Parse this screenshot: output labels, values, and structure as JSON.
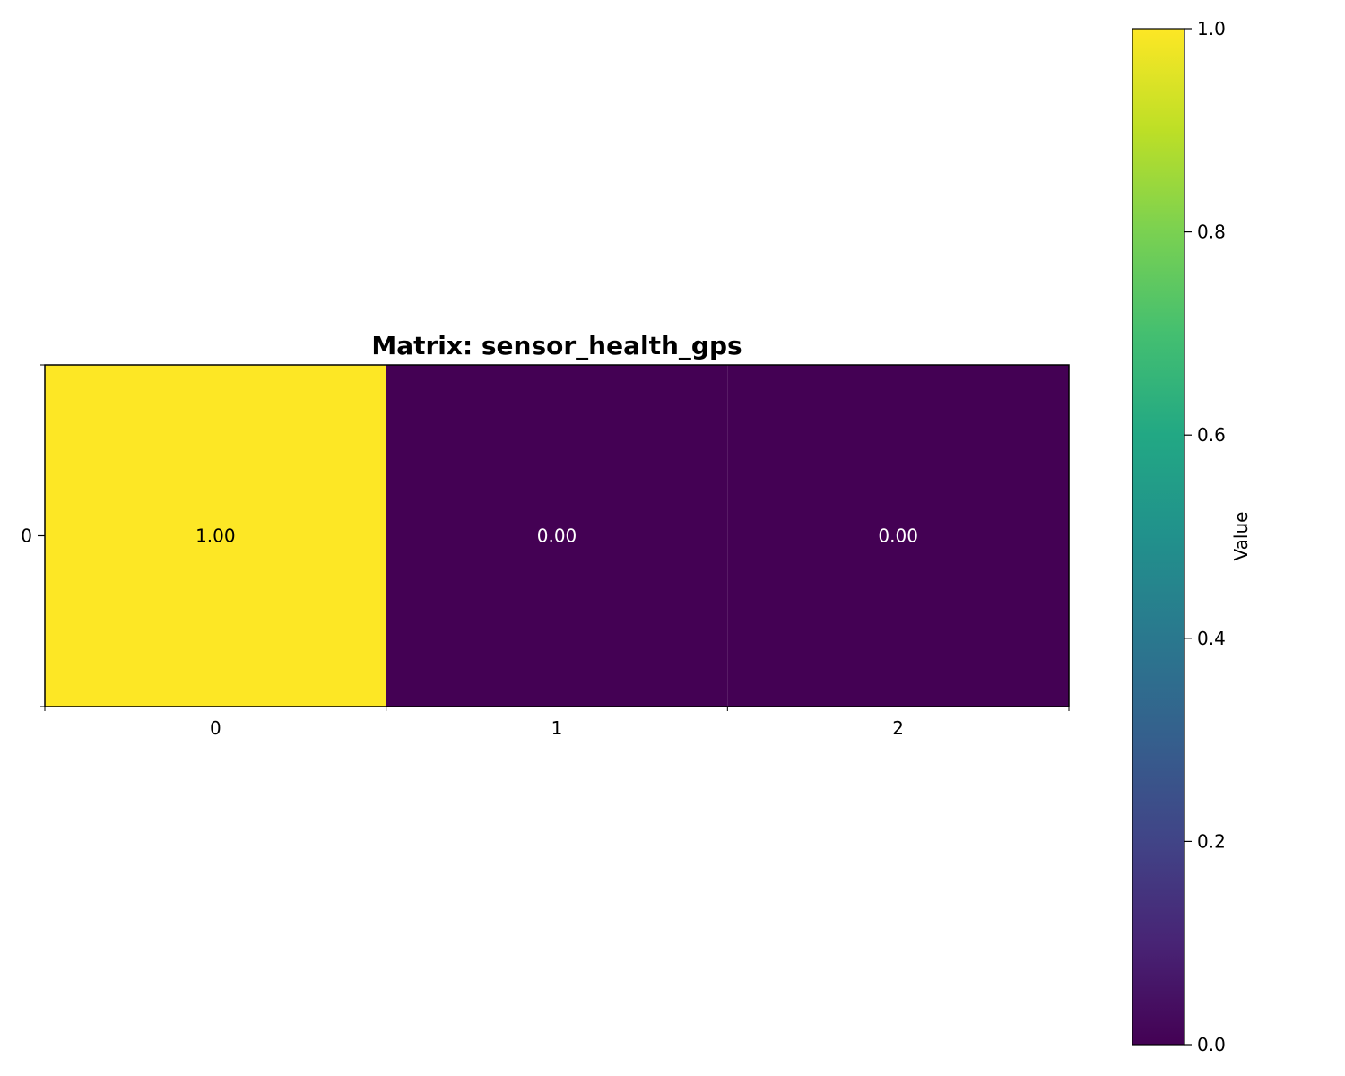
{
  "chart_data": {
    "type": "heatmap",
    "title": "Matrix: sensor_health_gps",
    "rows": [
      "0"
    ],
    "columns": [
      "0",
      "1",
      "2"
    ],
    "values": [
      [
        1.0,
        0.0,
        0.0
      ]
    ],
    "cell_labels": [
      [
        "1.00",
        "0.00",
        "0.00"
      ]
    ],
    "colormap": "viridis",
    "colorbar": {
      "label": "Value",
      "range": [
        0.0,
        1.0
      ],
      "ticks": [
        0.0,
        0.2,
        0.4,
        0.6,
        0.8,
        1.0
      ],
      "tick_labels": [
        "0.0",
        "0.2",
        "0.4",
        "0.6",
        "0.8",
        "1.0"
      ]
    },
    "grid": false,
    "colors": {
      "high": "#fde725",
      "low": "#440154"
    }
  }
}
